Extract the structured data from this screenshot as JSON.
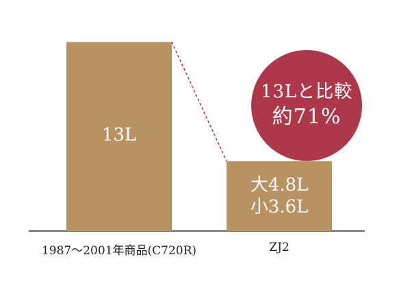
{
  "chart_data": {
    "type": "bar",
    "categories": [
      "1987〜2001年商品(C720R)",
      "ZJ2"
    ],
    "values": [
      13,
      4.8
    ],
    "value_labels": [
      "13L",
      [
        "大4.8L",
        "小3.6L"
      ]
    ],
    "ylim": [
      0,
      14
    ],
    "grid": false,
    "legend": "none",
    "annotation": {
      "line1": "13Lと比較",
      "line2": "約71%",
      "connector": "dashed"
    },
    "colors": {
      "bar": "#b99262",
      "badge": "#ad3849",
      "connector": "#a8394a",
      "axis": "#333333"
    }
  }
}
